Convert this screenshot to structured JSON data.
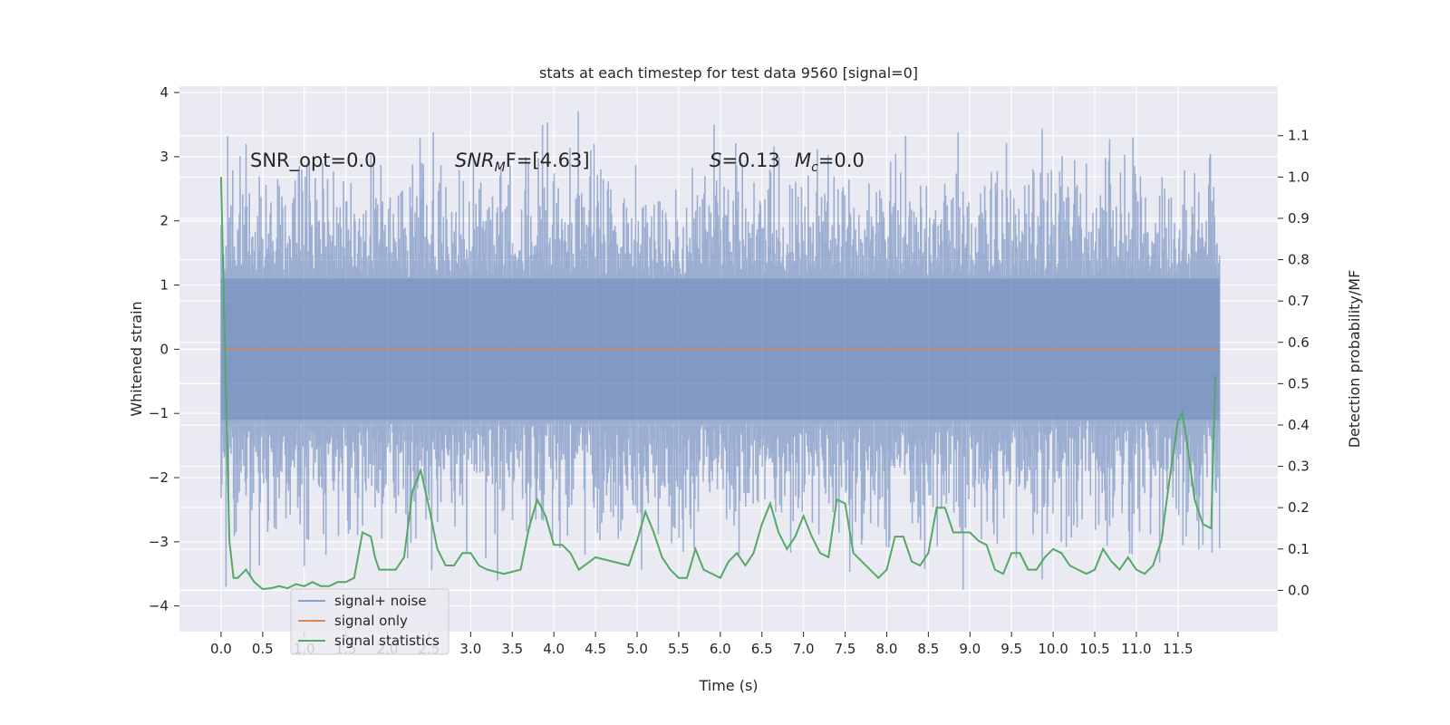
{
  "chart_data": {
    "type": "line",
    "title": "stats at each timestep for test data 9560 [signal=0]",
    "xlabel": "Time (s)",
    "ylabel": "Whitened strain",
    "y2label": "Detection probability/MF",
    "xlim": [
      -0.5,
      12.7
    ],
    "ylim": [
      -4.4,
      4.1
    ],
    "y2lim": [
      -0.1,
      1.22
    ],
    "xticks": [
      0.0,
      0.5,
      1.0,
      1.5,
      2.0,
      2.5,
      3.0,
      3.5,
      4.0,
      4.5,
      5.0,
      5.5,
      6.0,
      6.5,
      7.0,
      7.5,
      8.0,
      8.5,
      9.0,
      9.5,
      10.0,
      10.5,
      11.0,
      11.5
    ],
    "xtick_labels": [
      "0.0",
      "0.5",
      "1.0",
      "1.5",
      "2.0",
      "2.5",
      "3.0",
      "3.5",
      "4.0",
      "4.5",
      "5.0",
      "5.5",
      "6.0",
      "6.5",
      "7.0",
      "7.5",
      "8.0",
      "8.5",
      "9.0",
      "9.5",
      "10.0",
      "10.5",
      "11.0",
      "11.5"
    ],
    "yticks": [
      -4,
      -3,
      -2,
      -1,
      0,
      1,
      2,
      3,
      4
    ],
    "ytick_labels": [
      "−4",
      "−3",
      "−2",
      "−1",
      "0",
      "1",
      "2",
      "3",
      "4"
    ],
    "y2ticks": [
      0.0,
      0.1,
      0.2,
      0.3,
      0.4,
      0.5,
      0.6,
      0.7,
      0.8,
      0.9,
      1.0,
      1.1
    ],
    "y2tick_labels": [
      "0.0",
      "0.1",
      "0.2",
      "0.3",
      "0.4",
      "0.5",
      "0.6",
      "0.7",
      "0.8",
      "0.9",
      "1.0",
      "1.1"
    ],
    "grid": true,
    "legend_position": "lower-left",
    "annotations": {
      "snr_opt": "SNR_opt=0.0",
      "snr_mf_sym": "SNR",
      "snr_mf_sub": "M",
      "snr_mf_rest": "F=[4.63]",
      "s_sym": "S",
      "s_rest": "=0.13",
      "mc_sym": "M",
      "mc_sub": "c",
      "mc_rest": "=0.0"
    },
    "series": [
      {
        "name": "signal+ noise",
        "color": "#4c72b0",
        "kind": "noise-band",
        "x_range": [
          0.0,
          12.0
        ],
        "typical_envelope": [
          -2.0,
          2.0
        ],
        "peak_max": 3.75,
        "peak_min": -4.0
      },
      {
        "name": "signal only",
        "color": "#dd8452",
        "x": [
          0.0,
          12.0
        ],
        "y": [
          0.0,
          0.0
        ]
      },
      {
        "name": "signal statistics",
        "color": "#55a868",
        "axis": "right",
        "x": [
          0.0,
          0.1,
          0.15,
          0.2,
          0.3,
          0.4,
          0.5,
          0.6,
          0.7,
          0.8,
          0.9,
          1.0,
          1.1,
          1.2,
          1.3,
          1.4,
          1.5,
          1.6,
          1.7,
          1.8,
          1.85,
          1.9,
          2.0,
          2.1,
          2.2,
          2.3,
          2.4,
          2.5,
          2.6,
          2.7,
          2.8,
          2.9,
          3.0,
          3.1,
          3.2,
          3.4,
          3.6,
          3.7,
          3.8,
          3.9,
          4.0,
          4.1,
          4.2,
          4.3,
          4.5,
          4.7,
          4.9,
          5.0,
          5.1,
          5.2,
          5.3,
          5.4,
          5.5,
          5.6,
          5.7,
          5.8,
          6.0,
          6.1,
          6.2,
          6.3,
          6.4,
          6.5,
          6.6,
          6.7,
          6.8,
          6.9,
          7.0,
          7.1,
          7.2,
          7.3,
          7.4,
          7.5,
          7.6,
          7.8,
          7.9,
          8.0,
          8.1,
          8.2,
          8.3,
          8.4,
          8.5,
          8.6,
          8.7,
          8.8,
          9.0,
          9.1,
          9.2,
          9.3,
          9.4,
          9.5,
          9.6,
          9.7,
          9.8,
          9.9,
          10.0,
          10.1,
          10.2,
          10.3,
          10.4,
          10.5,
          10.6,
          10.7,
          10.8,
          10.9,
          11.0,
          11.1,
          11.2,
          11.3,
          11.4,
          11.5,
          11.55,
          11.6,
          11.7,
          11.8,
          11.9,
          11.95
        ],
        "y": [
          1.0,
          0.12,
          0.03,
          0.03,
          0.05,
          0.02,
          0.003,
          0.005,
          0.01,
          0.005,
          0.015,
          0.01,
          0.02,
          0.01,
          0.01,
          0.02,
          0.02,
          0.03,
          0.14,
          0.13,
          0.08,
          0.05,
          0.05,
          0.05,
          0.08,
          0.24,
          0.29,
          0.2,
          0.1,
          0.06,
          0.06,
          0.09,
          0.09,
          0.06,
          0.05,
          0.04,
          0.05,
          0.15,
          0.22,
          0.18,
          0.11,
          0.11,
          0.09,
          0.05,
          0.08,
          0.07,
          0.06,
          0.12,
          0.19,
          0.14,
          0.08,
          0.05,
          0.03,
          0.03,
          0.1,
          0.05,
          0.03,
          0.07,
          0.09,
          0.06,
          0.09,
          0.16,
          0.21,
          0.14,
          0.1,
          0.13,
          0.18,
          0.13,
          0.09,
          0.08,
          0.22,
          0.21,
          0.09,
          0.05,
          0.03,
          0.05,
          0.13,
          0.13,
          0.07,
          0.06,
          0.09,
          0.2,
          0.2,
          0.14,
          0.14,
          0.12,
          0.11,
          0.05,
          0.04,
          0.09,
          0.09,
          0.05,
          0.05,
          0.08,
          0.1,
          0.09,
          0.06,
          0.05,
          0.04,
          0.05,
          0.1,
          0.07,
          0.05,
          0.08,
          0.05,
          0.04,
          0.06,
          0.12,
          0.27,
          0.41,
          0.43,
          0.37,
          0.22,
          0.16,
          0.15,
          0.52
        ]
      }
    ]
  }
}
